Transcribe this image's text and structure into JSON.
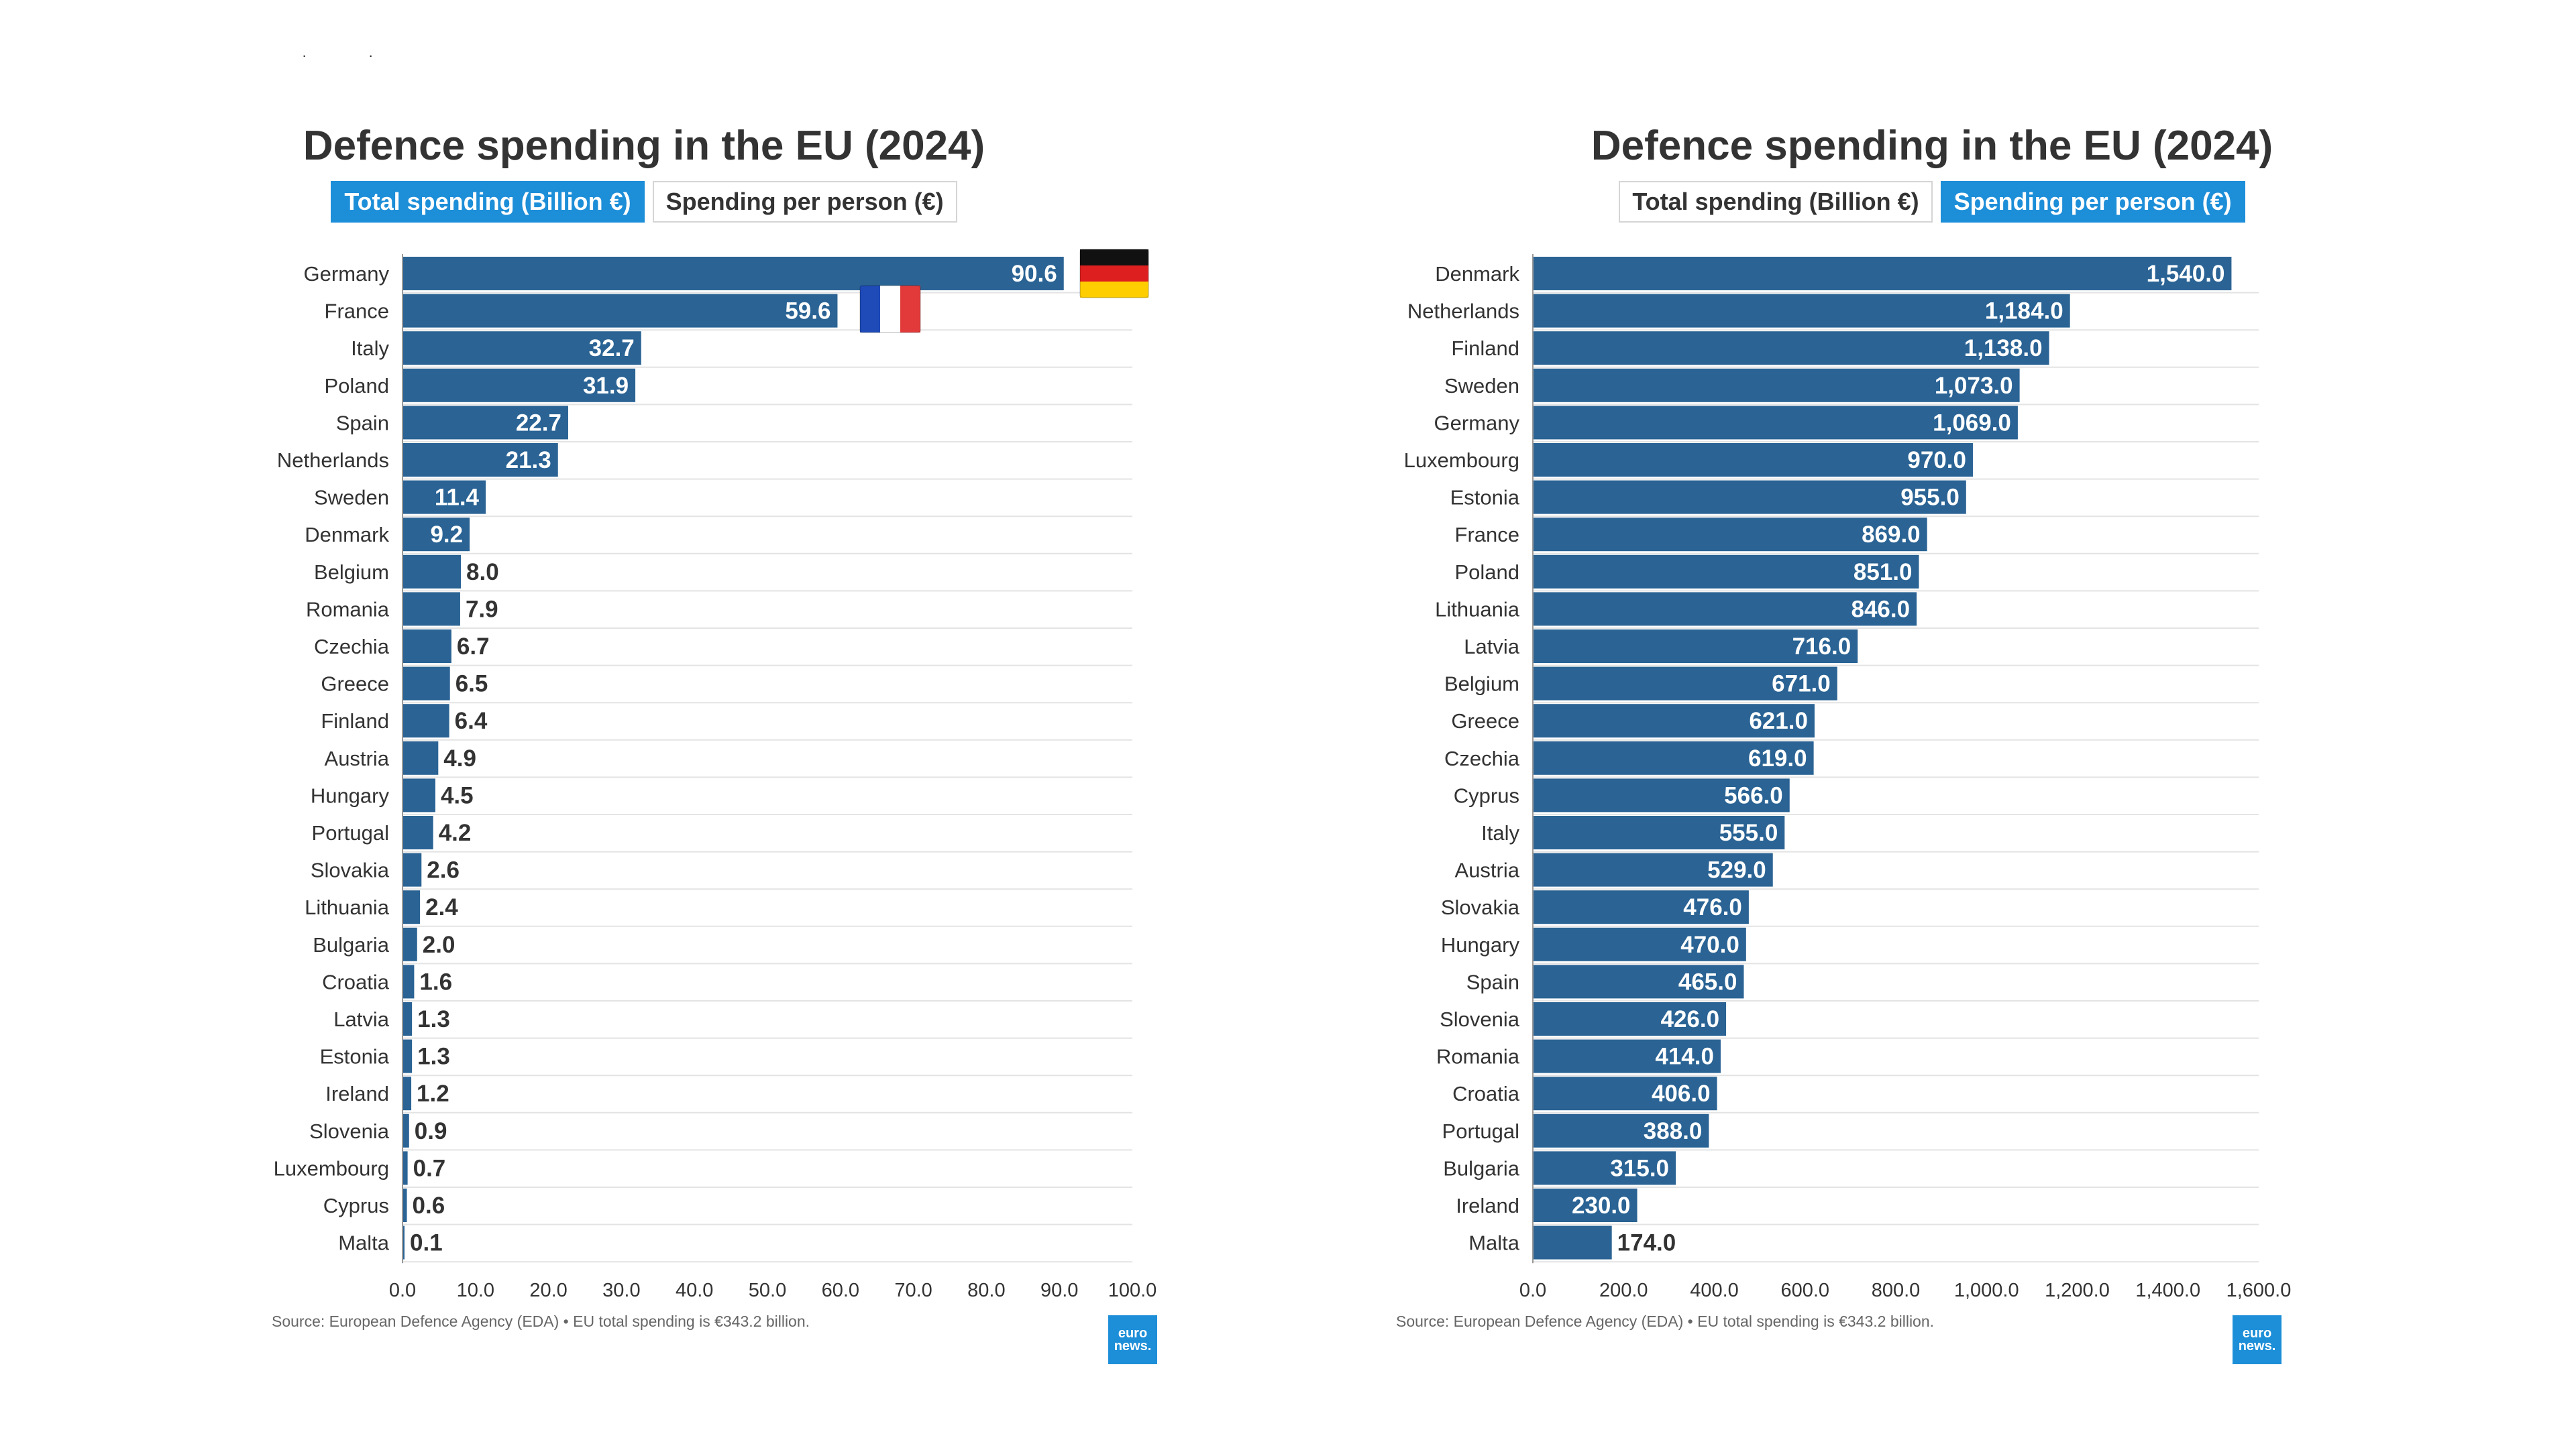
{
  "charts": [
    {
      "title": "Defence spending in the EU (2024)",
      "tabs": [
        {
          "label": "Total spending (Billion €)",
          "active": true
        },
        {
          "label": "Spending per person (€)",
          "active": false
        }
      ],
      "source": "Source: European Defence Agency (EDA) • EU total spending is €343.2 billion.",
      "logo": {
        "line1": "euro",
        "line2": "news."
      },
      "flags": [
        {
          "country": "Germany",
          "icon": "germany-flag-icon"
        },
        {
          "country": "France",
          "icon": "france-flag-icon"
        }
      ]
    },
    {
      "title": "Defence spending in the EU (2024)",
      "tabs": [
        {
          "label": "Total spending (Billion €)",
          "active": false
        },
        {
          "label": "Spending per person (€)",
          "active": true
        }
      ],
      "source": "Source: European Defence Agency (EDA) • EU total spending is €343.2 billion.",
      "logo": {
        "line1": "euro",
        "line2": "news."
      }
    }
  ],
  "colors": {
    "bar": "#2a6394",
    "accent": "#1d8ed8",
    "grid": "#e3e3e3"
  },
  "chart_data": [
    {
      "type": "bar",
      "orientation": "horizontal",
      "title": "Defence spending in the EU (2024)",
      "categories": [
        "Germany",
        "France",
        "Italy",
        "Poland",
        "Spain",
        "Netherlands",
        "Sweden",
        "Denmark",
        "Belgium",
        "Romania",
        "Czechia",
        "Greece",
        "Finland",
        "Austria",
        "Hungary",
        "Portugal",
        "Slovakia",
        "Lithuania",
        "Bulgaria",
        "Croatia",
        "Latvia",
        "Estonia",
        "Ireland",
        "Slovenia",
        "Luxembourg",
        "Cyprus",
        "Malta"
      ],
      "values": [
        90.6,
        59.6,
        32.7,
        31.9,
        22.7,
        21.3,
        11.4,
        9.2,
        8.0,
        7.9,
        6.7,
        6.5,
        6.4,
        4.9,
        4.5,
        4.2,
        2.6,
        2.4,
        2.0,
        1.6,
        1.3,
        1.3,
        1.2,
        0.9,
        0.7,
        0.6,
        0.1
      ],
      "value_labels": [
        "90.6",
        "59.6",
        "32.7",
        "31.9",
        "22.7",
        "21.3",
        "11.4",
        "9.2",
        "8.0",
        "7.9",
        "6.7",
        "6.5",
        "6.4",
        "4.9",
        "4.5",
        "4.2",
        "2.6",
        "2.4",
        "2.0",
        "1.6",
        "1.3",
        "1.3",
        "1.2",
        "0.9",
        "0.7",
        "0.6",
        "0.1"
      ],
      "xlim": [
        0,
        100
      ],
      "xticks": [
        "0.0",
        "10.0",
        "20.0",
        "30.0",
        "40.0",
        "50.0",
        "60.0",
        "70.0",
        "80.0",
        "90.0",
        "100.0"
      ],
      "grid": true
    },
    {
      "type": "bar",
      "orientation": "horizontal",
      "title": "Defence spending in the EU (2024)",
      "categories": [
        "Denmark",
        "Netherlands",
        "Finland",
        "Sweden",
        "Germany",
        "Luxembourg",
        "Estonia",
        "France",
        "Poland",
        "Lithuania",
        "Latvia",
        "Belgium",
        "Greece",
        "Czechia",
        "Cyprus",
        "Italy",
        "Austria",
        "Slovakia",
        "Hungary",
        "Spain",
        "Slovenia",
        "Romania",
        "Croatia",
        "Portugal",
        "Bulgaria",
        "Ireland",
        "Malta"
      ],
      "values": [
        1540,
        1184,
        1138,
        1073,
        1069,
        970,
        955,
        869,
        851,
        846,
        716,
        671,
        621,
        619,
        566,
        555,
        529,
        476,
        470,
        465,
        426,
        414,
        406,
        388,
        315,
        230,
        174
      ],
      "value_labels": [
        "1,540.0",
        "1,184.0",
        "1,138.0",
        "1,073.0",
        "1,069.0",
        "970.0",
        "955.0",
        "869.0",
        "851.0",
        "846.0",
        "716.0",
        "671.0",
        "621.0",
        "619.0",
        "566.0",
        "555.0",
        "529.0",
        "476.0",
        "470.0",
        "465.0",
        "426.0",
        "414.0",
        "406.0",
        "388.0",
        "315.0",
        "230.0",
        "174.0"
      ],
      "xlim": [
        0,
        1600
      ],
      "xticks": [
        "0.0",
        "200.0",
        "400.0",
        "600.0",
        "800.0",
        "1,000.0",
        "1,200.0",
        "1,400.0",
        "1,600.0"
      ],
      "grid": true
    }
  ]
}
